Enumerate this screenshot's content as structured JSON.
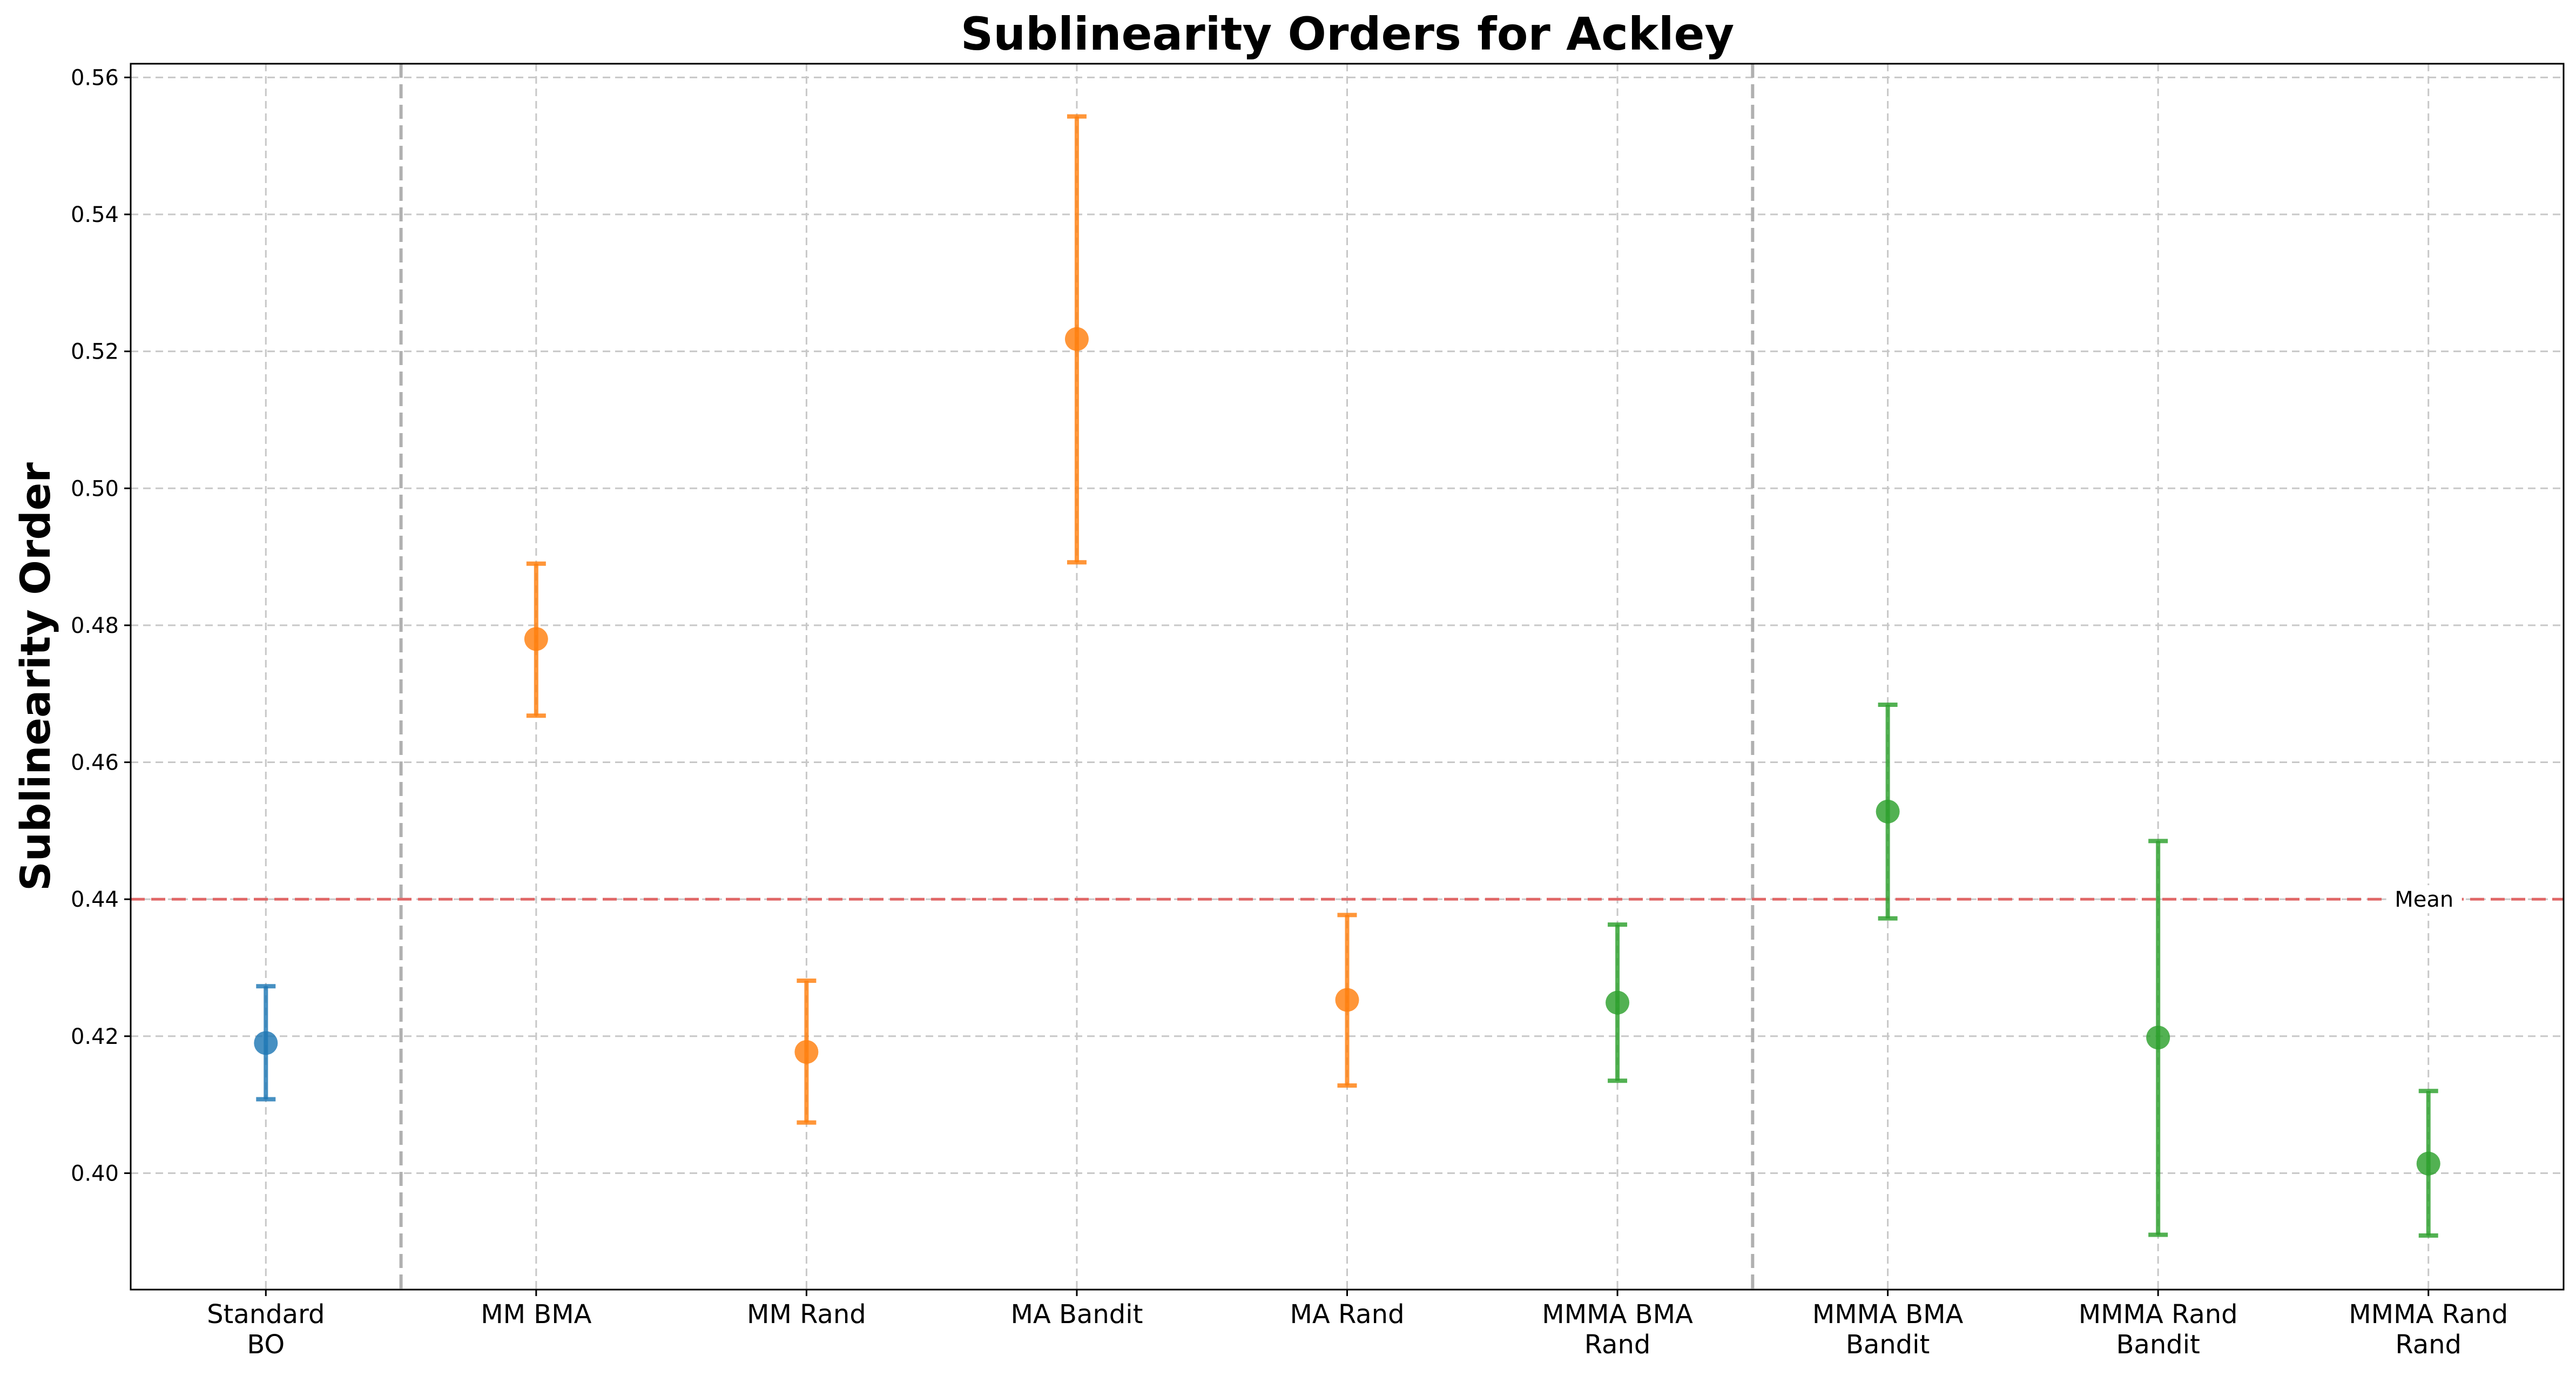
{
  "chart_data": {
    "type": "scatter",
    "title": "Sublinearity Orders for Ackley",
    "xlabel": "",
    "ylabel": "Sublinearity Order",
    "ylim": [
      0.383,
      0.562
    ],
    "yticks": [
      "0.40",
      "0.42",
      "0.44",
      "0.46",
      "0.48",
      "0.50",
      "0.52",
      "0.54",
      "0.56"
    ],
    "grid": true,
    "categories": [
      [
        "Standard",
        "BO"
      ],
      [
        "MM BMA"
      ],
      [
        "MM Rand"
      ],
      [
        "MA Bandit"
      ],
      [
        "MA Rand"
      ],
      [
        "MMMA BMA",
        "Rand"
      ],
      [
        "MMMA BMA",
        "Bandit"
      ],
      [
        "MMMA Rand",
        "Bandit"
      ],
      [
        "MMMA Rand",
        "Rand"
      ]
    ],
    "values": [
      0.419,
      0.478,
      0.4177,
      0.5218,
      0.4253,
      0.4249,
      0.4528,
      0.4198,
      0.4014
    ],
    "err_low": [
      0.4108,
      0.4668,
      0.4074,
      0.4892,
      0.4128,
      0.4135,
      0.4372,
      0.391,
      0.3909
    ],
    "err_high": [
      0.4273,
      0.489,
      0.4281,
      0.5543,
      0.4377,
      0.4363,
      0.4684,
      0.4485,
      0.412
    ],
    "group_colors": [
      "#1f77b4",
      "#ff7f0e",
      "#ff7f0e",
      "#ff7f0e",
      "#ff7f0e",
      "#2ca02c",
      "#2ca02c",
      "#2ca02c",
      "#2ca02c"
    ],
    "separators_after": [
      0.5,
      5.5
    ],
    "mean_line": {
      "value": 0.44,
      "label": "Mean",
      "color": "#e06666"
    }
  }
}
